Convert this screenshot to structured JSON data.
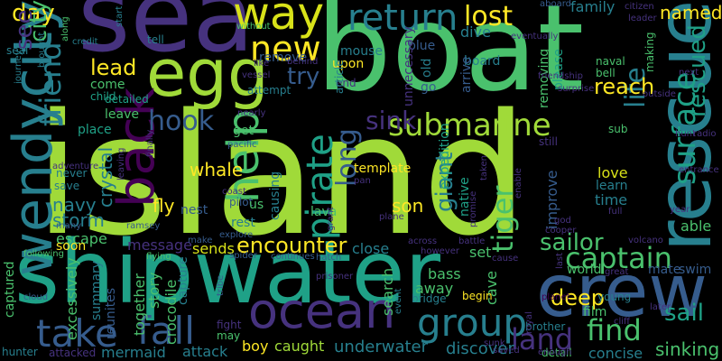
{
  "background": "#000000",
  "palette": {
    "lime": "#a0da39",
    "green": "#4ac16d",
    "teal": "#1fa187",
    "cyan": "#277f8e",
    "blue": "#365c8d",
    "indigo": "#46327e",
    "purple": "#440154",
    "yellow": "#fde725"
  },
  "words": [
    {
      "text": "island",
      "color": "#a0da39"
    },
    {
      "text": "boat",
      "color": "#4ac16d"
    },
    {
      "text": "shipwater",
      "color": "#1fa187"
    },
    {
      "text": "sea",
      "color": "#46327e"
    },
    {
      "text": "egg",
      "color": "#a0da39"
    },
    {
      "text": "rescue",
      "color": "#277f8e"
    },
    {
      "text": "crew",
      "color": "#365c8d"
    },
    {
      "text": "wendycity",
      "color": "#277f8e"
    },
    {
      "text": "way",
      "color": "#d8e219"
    },
    {
      "text": "ocean",
      "color": "#46327e"
    },
    {
      "text": "back",
      "color": "#440154"
    },
    {
      "text": "help",
      "color": "#4ac16d"
    },
    {
      "text": "pirate",
      "color": "#1fa187"
    },
    {
      "text": "return",
      "color": "#277f8e"
    },
    {
      "text": "new",
      "color": "#fde725"
    },
    {
      "text": "take",
      "color": "#365c8d"
    },
    {
      "text": "fall",
      "color": "#365c8d"
    },
    {
      "text": "group",
      "color": "#277f8e"
    },
    {
      "text": "submarine",
      "color": "#a0da39"
    },
    {
      "text": "captain",
      "color": "#4ac16d"
    },
    {
      "text": "surface",
      "color": "#1fa187"
    },
    {
      "text": "tiger",
      "color": "#4ac16d"
    },
    {
      "text": "land",
      "color": "#46327e"
    },
    {
      "text": "find",
      "color": "#4ac16d"
    },
    {
      "text": "friend",
      "color": "#277f8e"
    },
    {
      "text": "hook",
      "color": "#365c8d"
    },
    {
      "text": "long",
      "color": "#365c8d"
    },
    {
      "text": "sink",
      "color": "#46327e"
    },
    {
      "text": "life",
      "color": "#277f8e"
    },
    {
      "text": "lost",
      "color": "#fde725"
    },
    {
      "text": "day",
      "color": "#fde725"
    },
    {
      "text": "rescued",
      "color": "#1fa187"
    },
    {
      "text": "encounter",
      "color": "#fde725"
    },
    {
      "text": "sailor",
      "color": "#4ac16d"
    },
    {
      "text": "sail",
      "color": "#1fa187"
    },
    {
      "text": "reach",
      "color": "#fde725"
    },
    {
      "text": "try",
      "color": "#365c8d"
    },
    {
      "text": "lead",
      "color": "#fde725"
    },
    {
      "text": "see",
      "color": "#46327e"
    },
    {
      "text": "city",
      "color": "#4ac16d"
    },
    {
      "text": "giant",
      "color": "#277f8e"
    },
    {
      "text": "deep",
      "color": "#fde725"
    },
    {
      "text": "whale",
      "color": "#fde725"
    },
    {
      "text": "named",
      "color": "#fde725"
    },
    {
      "text": "son",
      "color": "#fde725"
    },
    {
      "text": "fly",
      "color": "#fde725"
    },
    {
      "text": "crystal",
      "color": "#277f8e"
    },
    {
      "text": "navy",
      "color": "#277f8e"
    },
    {
      "text": "storm",
      "color": "#277f8e"
    },
    {
      "text": "sinking",
      "color": "#4ac16d"
    },
    {
      "text": "family",
      "color": "#277f8e"
    },
    {
      "text": "mermaid",
      "color": "#277f8e"
    },
    {
      "text": "attack",
      "color": "#277f8e"
    },
    {
      "text": "underwater",
      "color": "#277f8e"
    },
    {
      "text": "discover",
      "color": "#277f8e"
    },
    {
      "text": "concise",
      "color": "#277f8e"
    },
    {
      "text": "boy",
      "color": "#fde725"
    },
    {
      "text": "caught",
      "color": "#a0da39"
    },
    {
      "text": "message",
      "color": "#46327e"
    },
    {
      "text": "escape",
      "color": "#4ac16d"
    },
    {
      "text": "sends",
      "color": "#d8e219"
    },
    {
      "text": "together",
      "color": "#4ac16d"
    },
    {
      "text": "story",
      "color": "#4ac16d"
    },
    {
      "text": "crocodile",
      "color": "#4ac16d"
    },
    {
      "text": "capture",
      "color": "#277f8e"
    },
    {
      "text": "summary",
      "color": "#277f8e"
    },
    {
      "text": "reunites",
      "color": "#365c8d"
    },
    {
      "text": "excessively",
      "color": "#4ac16d"
    },
    {
      "text": "captured",
      "color": "#4ac16d"
    },
    {
      "text": "search",
      "color": "#4ac16d"
    },
    {
      "text": "cave",
      "color": "#4ac16d"
    },
    {
      "text": "set",
      "color": "#4ac16d"
    },
    {
      "text": "bass",
      "color": "#4ac16d"
    },
    {
      "text": "away",
      "color": "#4ac16d"
    },
    {
      "text": "film",
      "color": "#4ac16d"
    },
    {
      "text": "world",
      "color": "#4ac16d"
    },
    {
      "text": "mate",
      "color": "#365c8d"
    },
    {
      "text": "swim",
      "color": "#365c8d"
    },
    {
      "text": "able",
      "color": "#4ac16d"
    },
    {
      "text": "love",
      "color": "#d8e219"
    },
    {
      "text": "learn",
      "color": "#277f8e"
    },
    {
      "text": "time",
      "color": "#277f8e"
    },
    {
      "text": "improve",
      "color": "#365c8d"
    },
    {
      "text": "expedition",
      "color": "#1fa187"
    },
    {
      "text": "native",
      "color": "#1fa187"
    },
    {
      "text": "template",
      "color": "#fde725"
    },
    {
      "text": "lava",
      "color": "#4ac16d"
    },
    {
      "text": "rest",
      "color": "#277f8e"
    },
    {
      "text": "close",
      "color": "#277f8e"
    },
    {
      "text": "nest",
      "color": "#365c8d"
    },
    {
      "text": "causing",
      "color": "#277f8e"
    },
    {
      "text": "pilot",
      "color": "#365c8d"
    },
    {
      "text": "come",
      "color": "#4ac16d"
    },
    {
      "text": "leave",
      "color": "#4ac16d"
    },
    {
      "text": "detailed",
      "color": "#1fa187"
    },
    {
      "text": "place",
      "color": "#1fa187"
    },
    {
      "text": "child",
      "color": "#1fa187"
    },
    {
      "text": "attempt",
      "color": "#277f8e"
    },
    {
      "text": "remove",
      "color": "#365c8d"
    },
    {
      "text": "get",
      "color": "#4ac16d"
    },
    {
      "text": "us",
      "color": "#4ac16d"
    },
    {
      "text": "upon",
      "color": "#fde725"
    },
    {
      "text": "end",
      "color": "#46327e"
    },
    {
      "text": "mouse",
      "color": "#277f8e"
    },
    {
      "text": "dive",
      "color": "#277f8e"
    },
    {
      "text": "blue",
      "color": "#365c8d"
    },
    {
      "text": "old",
      "color": "#277f8e"
    },
    {
      "text": "go",
      "color": "#365c8d"
    },
    {
      "text": "board",
      "color": "#277f8e"
    },
    {
      "text": "arrive",
      "color": "#365c8d"
    },
    {
      "text": "removing",
      "color": "#4ac16d"
    },
    {
      "text": "please",
      "color": "#1fa187"
    },
    {
      "text": "unnecessary",
      "color": "#46327e"
    },
    {
      "text": "sub",
      "color": "#4ac16d"
    },
    {
      "text": "still",
      "color": "#46327e"
    },
    {
      "text": "seal",
      "color": "#277f8e"
    },
    {
      "text": "tell",
      "color": "#277f8e"
    },
    {
      "text": "never",
      "color": "#277f8e"
    },
    {
      "text": "save",
      "color": "#277f8e"
    },
    {
      "text": "soon",
      "color": "#fde725"
    },
    {
      "text": "fight",
      "color": "#46327e"
    },
    {
      "text": "may",
      "color": "#4ac16d"
    },
    {
      "text": "brother",
      "color": "#277f8e"
    },
    {
      "text": "detail",
      "color": "#4ac16d"
    },
    {
      "text": "begin",
      "color": "#fde725"
    },
    {
      "text": "bridge",
      "color": "#277f8e"
    },
    {
      "text": "young",
      "color": "#277f8e"
    },
    {
      "text": "naval",
      "color": "#4ac16d"
    },
    {
      "text": "bell",
      "color": "#4ac16d"
    },
    {
      "text": "making",
      "color": "#4ac16d"
    },
    {
      "text": "hunter",
      "color": "#277f8e"
    },
    {
      "text": "attacked",
      "color": "#46327e"
    },
    {
      "text": "article",
      "color": "#277f8e"
    },
    {
      "text": "aboard",
      "color": "#365c8d"
    },
    {
      "text": "saved",
      "color": "#46327e"
    },
    {
      "text": "event",
      "color": "#277f8e"
    },
    {
      "text": "cloud",
      "color": "#365c8d"
    },
    {
      "text": "following",
      "color": "#4ac16d"
    },
    {
      "text": "planet",
      "color": "#440154"
    },
    {
      "text": "journey",
      "color": "#277f8e"
    },
    {
      "text": "brought",
      "color": "#277f8e"
    },
    {
      "text": "along",
      "color": "#4ac16d"
    },
    {
      "text": "credit",
      "color": "#277f8e"
    },
    {
      "text": "start",
      "color": "#277f8e"
    },
    {
      "text": "without",
      "color": "#4ac16d"
    },
    {
      "text": "like",
      "color": "#46327e"
    },
    {
      "text": "behind",
      "color": "#46327e"
    },
    {
      "text": "vessel",
      "color": "#46327e"
    },
    {
      "text": "nearly",
      "color": "#46327e"
    },
    {
      "text": "pacific",
      "color": "#365c8d"
    },
    {
      "text": "finally",
      "color": "#46327e"
    },
    {
      "text": "adventure",
      "color": "#46327e"
    },
    {
      "text": "leaving",
      "color": "#46327e"
    },
    {
      "text": "many",
      "color": "#365c8d"
    },
    {
      "text": "ramsey",
      "color": "#365c8d"
    },
    {
      "text": "flying",
      "color": "#4ac16d"
    },
    {
      "text": "make",
      "color": "#365c8d"
    },
    {
      "text": "explore",
      "color": "#365c8d"
    },
    {
      "text": "spider",
      "color": "#365c8d"
    },
    {
      "text": "continues",
      "color": "#365c8d"
    },
    {
      "text": "hatch",
      "color": "#365c8d"
    },
    {
      "text": "tribe",
      "color": "#365c8d"
    },
    {
      "text": "prisoner",
      "color": "#46327e"
    },
    {
      "text": "across",
      "color": "#46327e"
    },
    {
      "text": "however",
      "color": "#46327e"
    },
    {
      "text": "cause",
      "color": "#46327e"
    },
    {
      "text": "battle",
      "color": "#46327e"
    },
    {
      "text": "coast",
      "color": "#46327e"
    },
    {
      "text": "pan",
      "color": "#46327e"
    },
    {
      "text": "grant",
      "color": "#46327e"
    },
    {
      "text": "promise",
      "color": "#46327e"
    },
    {
      "text": "taken",
      "color": "#46327e"
    },
    {
      "text": "plane",
      "color": "#46327e"
    },
    {
      "text": "sunk",
      "color": "#46327e"
    },
    {
      "text": "enable",
      "color": "#46327e"
    },
    {
      "text": "god",
      "color": "#46327e"
    },
    {
      "text": "cooper",
      "color": "#46327e"
    },
    {
      "text": "last",
      "color": "#46327e"
    },
    {
      "text": "volcano",
      "color": "#46327e"
    },
    {
      "text": "great",
      "color": "#46327e"
    },
    {
      "text": "cliff",
      "color": "#46327e"
    },
    {
      "text": "later",
      "color": "#46327e"
    },
    {
      "text": "royal",
      "color": "#46327e"
    },
    {
      "text": "enough",
      "color": "#46327e"
    },
    {
      "text": "full",
      "color": "#46327e"
    },
    {
      "text": "year",
      "color": "#46327e"
    },
    {
      "text": "entrance",
      "color": "#46327e"
    },
    {
      "text": "hunt",
      "color": "#46327e"
    },
    {
      "text": "radio",
      "color": "#46327e"
    },
    {
      "text": "outside",
      "color": "#46327e"
    },
    {
      "text": "next",
      "color": "#46327e"
    },
    {
      "text": "leader",
      "color": "#46327e"
    },
    {
      "text": "citizen",
      "color": "#46327e"
    },
    {
      "text": "eventually",
      "color": "#46327e"
    },
    {
      "text": "surprise",
      "color": "#46327e"
    },
    {
      "text": "friendship",
      "color": "#46327e"
    }
  ]
}
